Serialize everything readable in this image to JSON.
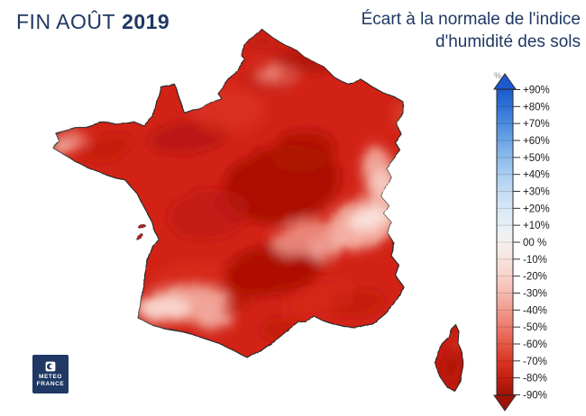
{
  "header": {
    "period_label": "FIN AOÛT",
    "year": "2019",
    "title_line1": "Écart à la normale de l'indice",
    "title_line2": "d'humidité des sols",
    "title_color": "#1f3864"
  },
  "legend": {
    "unit_symbol": "%",
    "labels": [
      "+90%",
      "+80%",
      "+70%",
      "+60%",
      "+50%",
      "+40%",
      "+30%",
      "+20%",
      "+10%",
      "00 %",
      "-10%",
      "-20%",
      "-30%",
      "-40%",
      "-50%",
      "-60%",
      "-70%",
      "-80%",
      "-90%"
    ],
    "stop_colors": [
      "#1d5ace",
      "#2e72d6",
      "#4a8bde",
      "#6ca4e5",
      "#8cbaeb",
      "#a9cdf0",
      "#c3dcf4",
      "#d7e7f6",
      "#e7eff7",
      "#f5f1ef",
      "#f8e3de",
      "#f8d1ca",
      "#f5b9b0",
      "#f19a8d",
      "#ec7a6b",
      "#e55745",
      "#d93523",
      "#c21f11",
      "#a01208"
    ],
    "tick_color": "#333333",
    "label_color": "#1a1a1a",
    "outline_color": "#2a2a2a"
  },
  "logo": {
    "line1": "METEO",
    "line2": "FRANCE",
    "bg_color": "#1f3864"
  },
  "map_palette": {
    "base": "#d22417",
    "darkest_anomaly": "#a41206",
    "lightest_anomaly": "#fae3dc",
    "outline": "#2b2b2b"
  }
}
